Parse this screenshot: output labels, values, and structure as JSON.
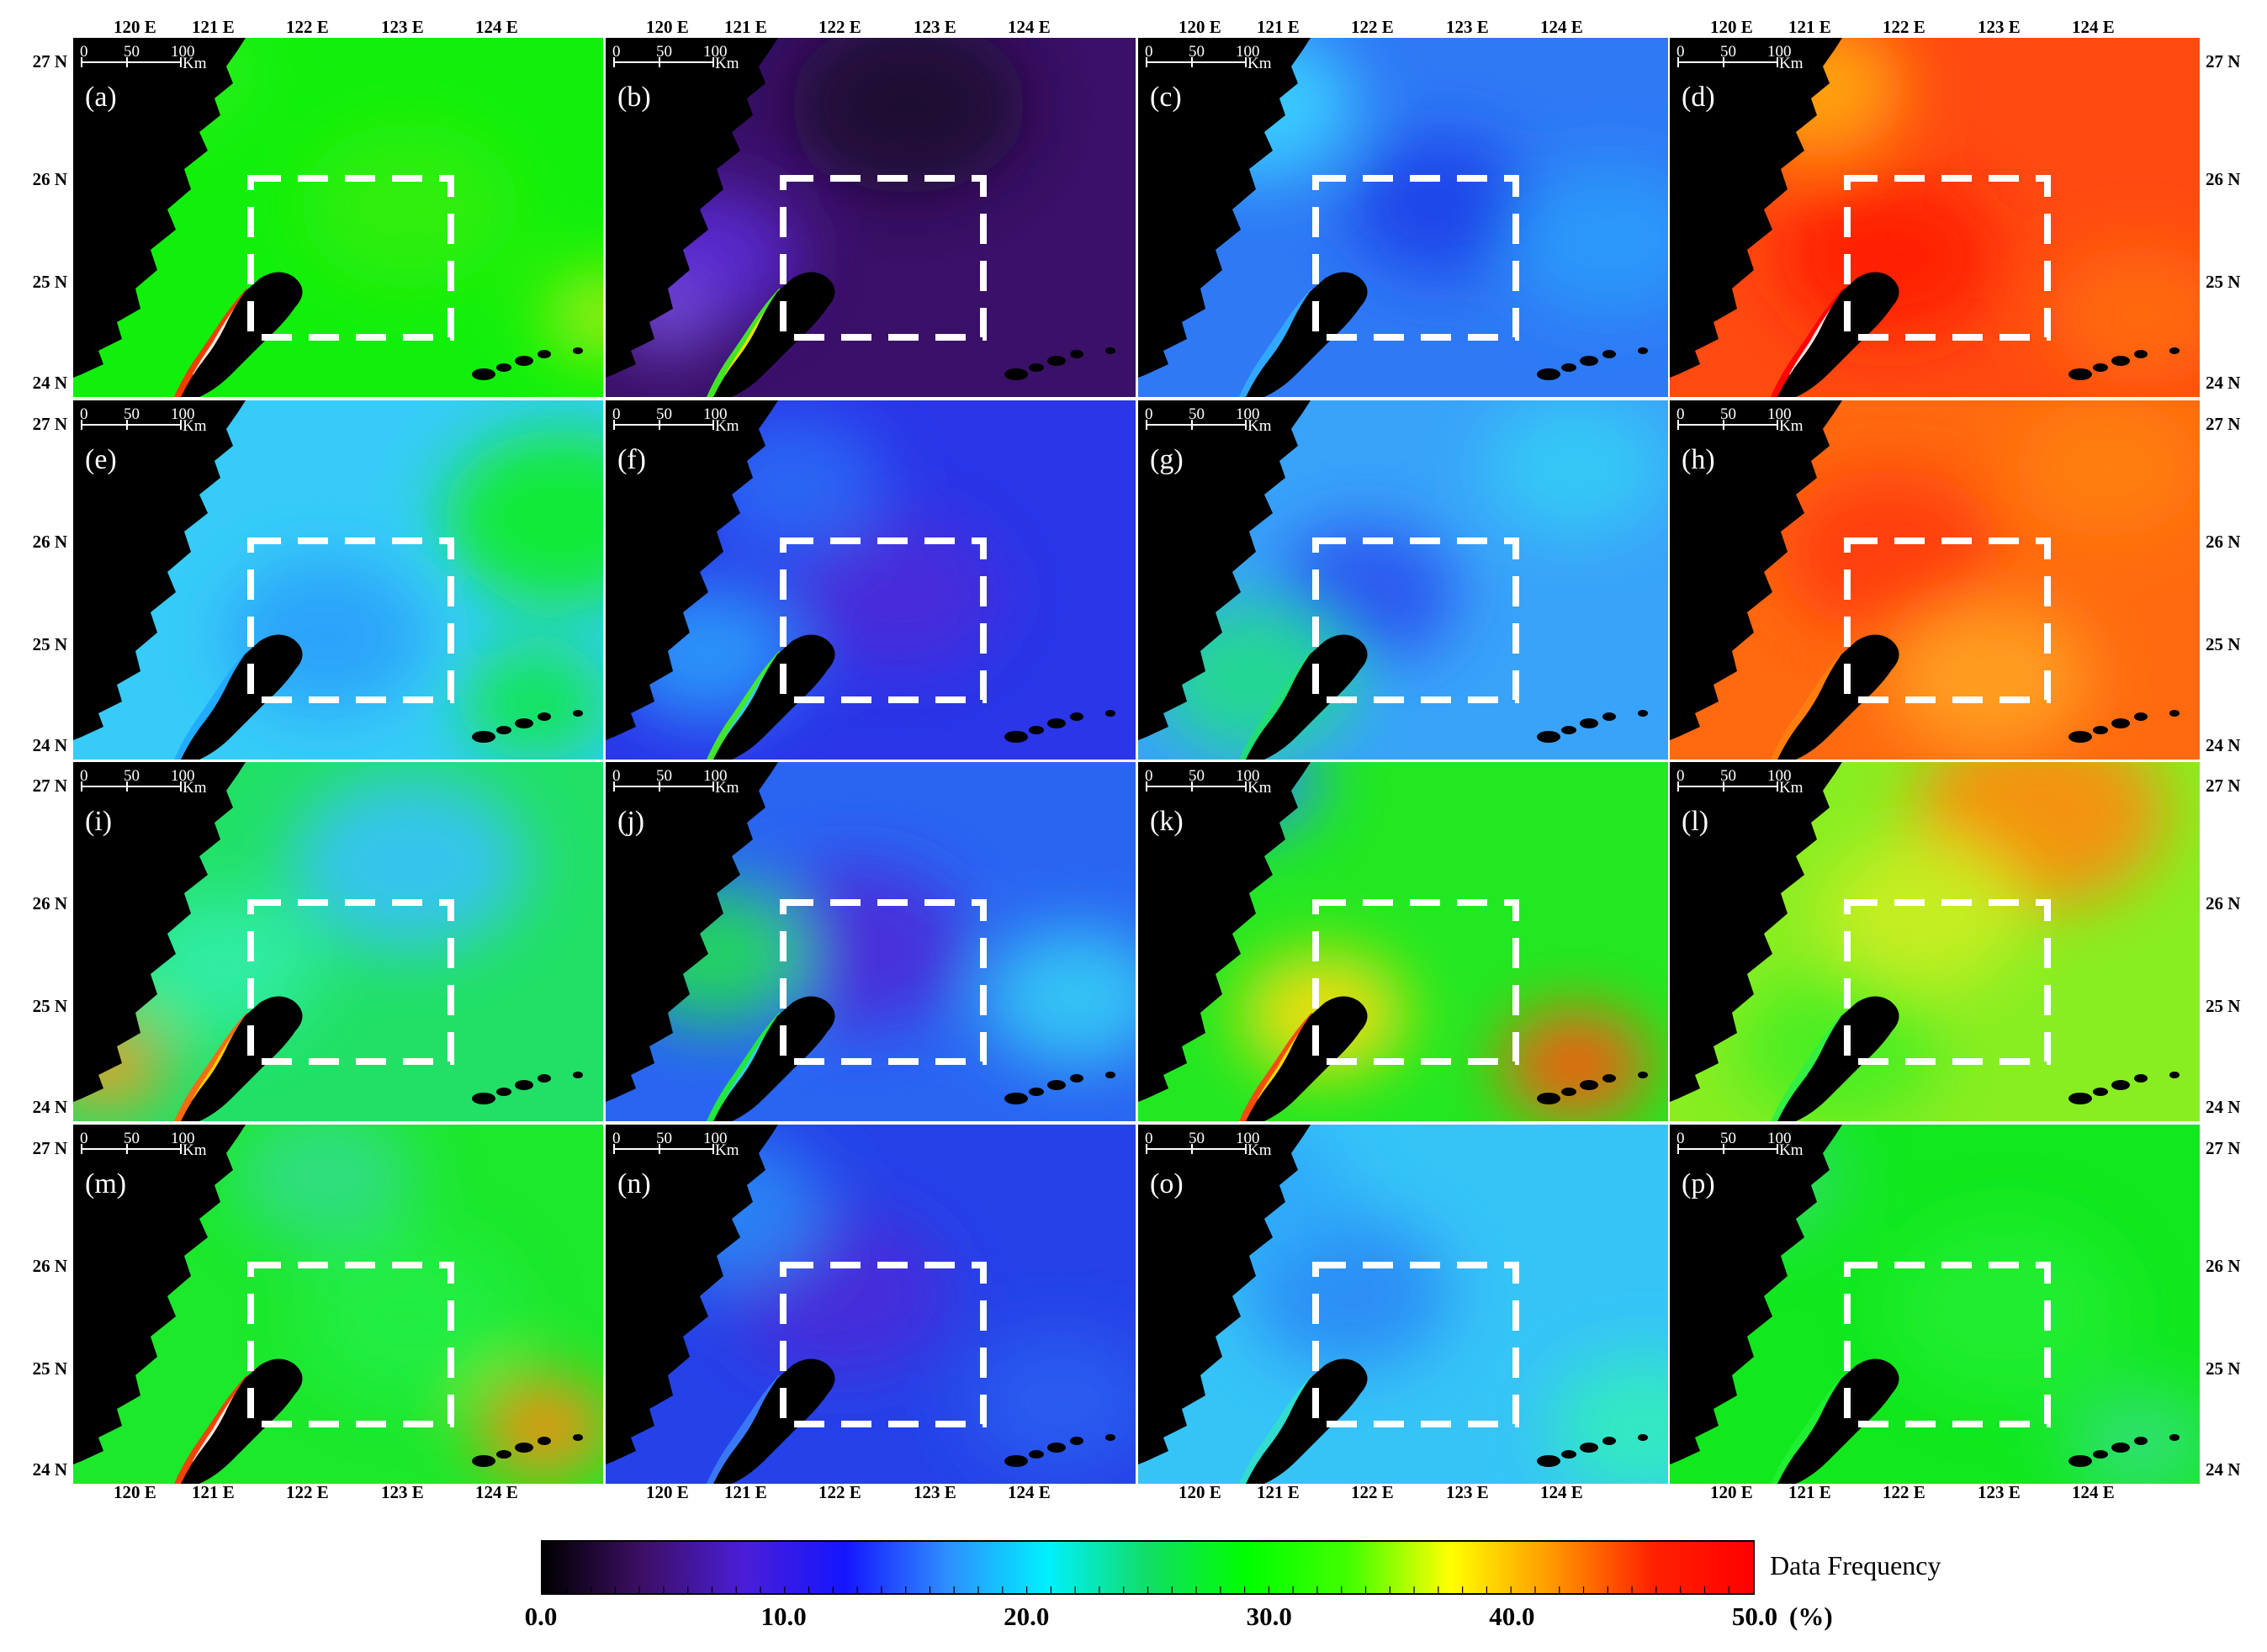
{
  "panels": [
    {
      "label": "(a)",
      "base": "#11f00c",
      "blobs": [
        [
          "#33ee22",
          120,
          40,
          90
        ],
        [
          "#aaee11",
          630,
          330,
          70
        ],
        [
          "#33ee11",
          400,
          200,
          130
        ]
      ],
      "taiwan_side": [
        "#ff3300",
        "#ffffff"
      ]
    },
    {
      "label": "(b)",
      "base": "#3a1068",
      "blobs": [
        [
          "#1c0a2e",
          360,
          80,
          140
        ],
        [
          "#5b2bd8",
          120,
          260,
          110
        ],
        [
          "#7b52e8",
          70,
          330,
          60
        ]
      ],
      "taiwan_side": [
        "#44ee22",
        "#ffdd00"
      ]
    },
    {
      "label": "(c)",
      "base": "#2f79f5",
      "blobs": [
        [
          "#1f3fe8",
          360,
          200,
          110
        ],
        [
          "#3ad2ff",
          140,
          80,
          120
        ],
        [
          "#2a9cfa",
          560,
          240,
          120
        ]
      ],
      "taiwan_side": [
        "#33aaff",
        "#33aaff"
      ]
    },
    {
      "label": "(d)",
      "base": "#ff4a11",
      "blobs": [
        [
          "#ff1a05",
          260,
          260,
          130
        ],
        [
          "#ffaa11",
          170,
          60,
          110
        ],
        [
          "#ff6d11",
          560,
          330,
          110
        ]
      ],
      "taiwan_side": [
        "#ff0000",
        "#ffffff"
      ]
    },
    {
      "label": "(e)",
      "base": "#37ccf7",
      "blobs": [
        [
          "#11ee22",
          580,
          140,
          140
        ],
        [
          "#2a9ffa",
          300,
          280,
          120
        ],
        [
          "#11e844",
          550,
          360,
          90
        ]
      ],
      "taiwan_side": [
        "#22aaff",
        "#22aaff"
      ]
    },
    {
      "label": "(f)",
      "base": "#2a36e8",
      "blobs": [
        [
          "#4b2ad8",
          350,
          230,
          120
        ],
        [
          "#2a9cfa",
          120,
          300,
          110
        ],
        [
          "#2a6af5",
          220,
          100,
          110
        ]
      ],
      "taiwan_side": [
        "#44ee22",
        "#33ccff"
      ]
    },
    {
      "label": "(g)",
      "base": "#39a3f9",
      "blobs": [
        [
          "#2a50ef",
          270,
          230,
          110
        ],
        [
          "#22dd88",
          140,
          330,
          120
        ],
        [
          "#36ccf5",
          520,
          80,
          110
        ]
      ],
      "taiwan_side": [
        "#22dd77",
        "#22dd77"
      ]
    },
    {
      "label": "(h)",
      "base": "#ff6a10",
      "blobs": [
        [
          "#ff3a08",
          260,
          180,
          130
        ],
        [
          "#ffa322",
          380,
          330,
          120
        ],
        [
          "#ff8010",
          520,
          80,
          110
        ]
      ],
      "taiwan_side": [
        "#ff8010",
        "#ff8010"
      ]
    },
    {
      "label": "(i)",
      "base": "#22e066",
      "blobs": [
        [
          "#39c2fa",
          400,
          120,
          140
        ],
        [
          "#33eeaa",
          180,
          240,
          110
        ],
        [
          "#ff9922",
          40,
          360,
          70
        ]
      ],
      "taiwan_side": [
        "#ff6610",
        "#ffdd00"
      ]
    },
    {
      "label": "(j)",
      "base": "#2a65f2",
      "blobs": [
        [
          "#4c2ad8",
          300,
          220,
          130
        ],
        [
          "#22dd55",
          130,
          230,
          110
        ],
        [
          "#36ccf5",
          560,
          280,
          110
        ]
      ],
      "taiwan_side": [
        "#22ee33",
        "#33ccff"
      ]
    },
    {
      "label": "(k)",
      "base": "#22e822",
      "blobs": [
        [
          "#ffdd11",
          220,
          300,
          100
        ],
        [
          "#ff5511",
          520,
          360,
          90
        ],
        [
          "#2a8ef8",
          130,
          20,
          90
        ]
      ],
      "taiwan_side": [
        "#ff4411",
        "#ffee00"
      ]
    },
    {
      "label": "(l)",
      "base": "#88ee22",
      "blobs": [
        [
          "#ff8a11",
          440,
          60,
          150
        ],
        [
          "#44ee22",
          200,
          340,
          120
        ],
        [
          "#ccee22",
          300,
          180,
          120
        ]
      ],
      "taiwan_side": [
        "#33ee44",
        "#33ee44"
      ]
    },
    {
      "label": "(m)",
      "base": "#1ce82c",
      "blobs": [
        [
          "#33dd88",
          300,
          60,
          110
        ],
        [
          "#ff8a11",
          560,
          360,
          80
        ],
        [
          "#22ee44",
          400,
          230,
          130
        ]
      ],
      "taiwan_side": [
        "#ff3a08",
        "#ffffff"
      ]
    },
    {
      "label": "(n)",
      "base": "#2542e8",
      "blobs": [
        [
          "#4a2ad8",
          280,
          200,
          130
        ],
        [
          "#2a88f5",
          140,
          100,
          120
        ],
        [
          "#2a5ef0",
          540,
          330,
          110
        ]
      ],
      "taiwan_side": [
        "#3a7af5",
        "#3a7af5"
      ]
    },
    {
      "label": "(o)",
      "base": "#36c4f7",
      "blobs": [
        [
          "#2a88f5",
          250,
          200,
          120
        ],
        [
          "#33eebb",
          600,
          360,
          110
        ],
        [
          "#2fa8fa",
          130,
          80,
          120
        ]
      ],
      "taiwan_side": [
        "#33ddcc",
        "#33ddcc"
      ]
    },
    {
      "label": "(p)",
      "base": "#11e81e",
      "blobs": [
        [
          "#33dd66",
          100,
          60,
          110
        ],
        [
          "#22ee33",
          400,
          220,
          140
        ],
        [
          "#33e077",
          560,
          380,
          90
        ]
      ],
      "taiwan_side": [
        "#22ee33",
        "#22ee33"
      ]
    }
  ],
  "scalebar": {
    "ticks": [
      "0",
      "50",
      "100"
    ],
    "unit": "Km"
  },
  "longitude_labels": [
    "120 E",
    "121 E",
    "122 E",
    "123 E",
    "124 E"
  ],
  "latitude_labels": [
    "27 N",
    "26 N",
    "25 N",
    "24 N"
  ],
  "colorbar": {
    "title": "Data Frequency",
    "unit": "(%)",
    "min": 0,
    "max": 50,
    "ticks": [
      "0.0",
      "10.0",
      "20.0",
      "30.0",
      "40.0",
      "50.0"
    ],
    "stops": [
      "#000000",
      "#3d0f66",
      "#4a1ed8",
      "#1515ff",
      "#2f8cff",
      "#00f0ff",
      "#11dd66",
      "#00ff00",
      "#44ff00",
      "#ffff00",
      "#ff9900",
      "#ff2200",
      "#ff0000"
    ]
  },
  "colors": {
    "land": "#000000",
    "box": "#ffffff",
    "text": "#000000"
  }
}
